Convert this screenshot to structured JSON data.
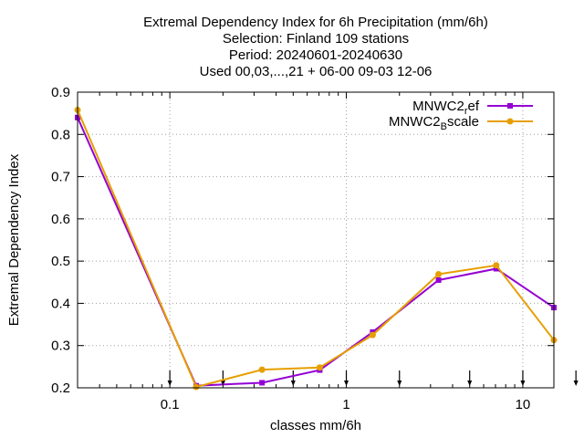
{
  "chart_data": {
    "type": "line",
    "title": [
      "Extremal Dependency Index  for 6h Precipitation (mm/6h)",
      "Selection: Finland    109 stations",
      "Period: 20240601-20240630",
      "Used 00,03,...,21 + 06-00 09-03 12-06"
    ],
    "xlabel": "classes mm/6h",
    "ylabel": "Extremal Dependency Index",
    "xscale": "log",
    "xlim": [
      0.03,
      15
    ],
    "ylim": [
      0.2,
      0.9
    ],
    "xticks": [
      {
        "value": 0.1,
        "label": "0.1"
      },
      {
        "value": 1,
        "label": "1"
      },
      {
        "value": 10,
        "label": "10"
      }
    ],
    "yticks": [
      {
        "value": 0.2,
        "label": "0.2"
      },
      {
        "value": 0.3,
        "label": "0.3"
      },
      {
        "value": 0.4,
        "label": "0.4"
      },
      {
        "value": 0.5,
        "label": "0.5"
      },
      {
        "value": 0.6,
        "label": "0.6"
      },
      {
        "value": 0.7,
        "label": "0.7"
      },
      {
        "value": 0.8,
        "label": "0.8"
      },
      {
        "value": 0.9,
        "label": "0.9"
      }
    ],
    "grid": true,
    "legend_position": "top-right",
    "class_limits": [
      0.1,
      0.2,
      0.5,
      1,
      2,
      5,
      10,
      20
    ],
    "series": [
      {
        "name": "MNWC2_ref",
        "legend_main": "MNWC2",
        "legend_sub": "r",
        "legend_rest": "ef",
        "color": "#9400d3",
        "x": [
          0.03,
          0.141,
          0.333,
          0.707,
          1.41,
          3.33,
          7.07,
          15
        ],
        "y": [
          0.84,
          0.205,
          0.212,
          0.242,
          0.332,
          0.455,
          0.482,
          0.39
        ]
      },
      {
        "name": "MNWC2_Bscale",
        "legend_main": "MNWC2",
        "legend_sub": "B",
        "legend_rest": "scale",
        "color": "#e69f00",
        "x": [
          0.03,
          0.141,
          0.333,
          0.707,
          1.41,
          3.33,
          7.07,
          15
        ],
        "y": [
          0.858,
          0.202,
          0.243,
          0.248,
          0.325,
          0.469,
          0.49,
          0.313
        ]
      }
    ]
  }
}
